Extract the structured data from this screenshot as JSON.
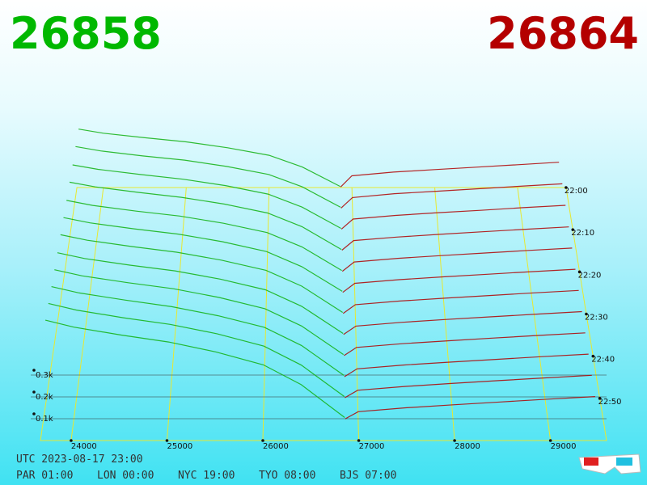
{
  "header": {
    "bid": "26858",
    "ask": "26864"
  },
  "footer": {
    "utc": "UTC 2023-08-17 23:00",
    "clocks": [
      "PAR 01:00",
      "LON 00:00",
      "NYC 19:00",
      "TYO 08:00",
      "BJS 07:00"
    ]
  },
  "chart_data": {
    "type": "depth3d",
    "xlim": [
      23680,
      29585
    ],
    "xticks": [
      24000,
      25000,
      26000,
      27000,
      28000,
      29000
    ],
    "ylim": [
      0,
      500
    ],
    "yticks": [
      {
        "value": 100,
        "label": "0.1k"
      },
      {
        "value": 200,
        "label": "0.2k"
      },
      {
        "value": 300,
        "label": "0.3k"
      }
    ],
    "tlim": [
      1320,
      1380
    ],
    "tticks": [
      {
        "value": 1320,
        "label": "22:00"
      },
      {
        "value": 1330,
        "label": "22:10"
      },
      {
        "value": 1340,
        "label": "22:20"
      },
      {
        "value": 1350,
        "label": "22:30"
      },
      {
        "value": 1360,
        "label": "22:40"
      },
      {
        "value": 1370,
        "label": "22:50"
      }
    ],
    "times": [
      1320,
      1325,
      1330,
      1335,
      1340,
      1345,
      1350,
      1355,
      1360,
      1365,
      1370,
      1375
    ],
    "grid_color": "#e8e830",
    "bids": {
      "color": "#10b010",
      "x": [
        23700,
        24000,
        24500,
        25000,
        25500,
        26000,
        26400,
        26858
      ],
      "series": [
        {
          "values": [
            310,
            288,
            264,
            242,
            211,
            171,
            109,
            6
          ]
        },
        {
          "values": [
            325,
            302,
            276,
            254,
            221,
            179,
            114,
            7
          ]
        },
        {
          "values": [
            335,
            312,
            285,
            261,
            228,
            184,
            117,
            7
          ]
        },
        {
          "values": [
            350,
            326,
            298,
            273,
            238,
            193,
            123,
            7
          ]
        },
        {
          "values": [
            360,
            335,
            306,
            281,
            245,
            198,
            126,
            7
          ]
        },
        {
          "values": [
            375,
            349,
            319,
            293,
            255,
            206,
            131,
            8
          ]
        },
        {
          "values": [
            390,
            363,
            332,
            304,
            265,
            215,
            137,
            8
          ]
        },
        {
          "values": [
            400,
            372,
            340,
            312,
            272,
            220,
            140,
            8
          ]
        },
        {
          "values": [
            415,
            386,
            353,
            324,
            282,
            228,
            145,
            8
          ]
        },
        {
          "values": [
            430,
            400,
            366,
            335,
            292,
            237,
            151,
            9
          ]
        },
        {
          "values": [
            445,
            414,
            378,
            347,
            303,
            245,
            156,
            9
          ]
        },
        {
          "values": [
            460,
            428,
            391,
            359,
            313,
            253,
            161,
            9
          ]
        }
      ]
    },
    "asks": {
      "color": "#b00000",
      "x": [
        26864,
        27000,
        27500,
        28000,
        28500,
        29000,
        29500
      ],
      "series": [
        {
          "values": [
            3,
            62,
            82,
            95,
            108,
            121,
            134
          ]
        },
        {
          "values": [
            3,
            58,
            78,
            91,
            104,
            117,
            130
          ]
        },
        {
          "values": [
            3,
            55,
            74,
            88,
            100,
            114,
            126
          ]
        },
        {
          "values": [
            3,
            52,
            70,
            84,
            97,
            110,
            122
          ]
        },
        {
          "values": [
            3,
            50,
            68,
            82,
            95,
            108,
            120
          ]
        },
        {
          "values": [
            3,
            48,
            66,
            80,
            93,
            106,
            118
          ]
        },
        {
          "values": [
            3,
            46,
            64,
            78,
            91,
            104,
            116
          ]
        },
        {
          "values": [
            3,
            44,
            62,
            76,
            89,
            102,
            114
          ]
        },
        {
          "values": [
            3,
            42,
            60,
            74,
            87,
            100,
            112
          ]
        },
        {
          "values": [
            3,
            40,
            58,
            72,
            85,
            98,
            110
          ]
        },
        {
          "values": [
            3,
            38,
            56,
            70,
            83,
            96,
            108
          ]
        },
        {
          "values": [
            3,
            36,
            54,
            68,
            81,
            94,
            106
          ]
        }
      ]
    }
  }
}
